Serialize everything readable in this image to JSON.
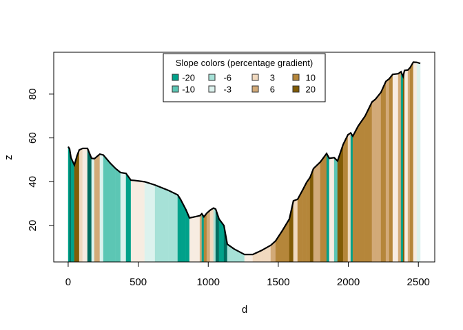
{
  "chart_data": {
    "type": "area",
    "xlabel": "d",
    "ylabel": "z",
    "xlim": [
      -103,
      2617
    ],
    "ylim": [
      3.4,
      99.1
    ],
    "x_ticks": [
      0,
      500,
      1000,
      1500,
      2000,
      2500
    ],
    "y_ticks": [
      20,
      40,
      60,
      80
    ],
    "grid": false,
    "legend": {
      "title": "Slope colors (percentage gradient)",
      "placement": "top",
      "entries": [
        {
          "label": "-20",
          "color": "#01a18a"
        },
        {
          "label": "-10",
          "color": "#5cc6b4"
        },
        {
          "label": "-6",
          "color": "#a6e1d7"
        },
        {
          "label": "-3",
          "color": "#dcf2ee"
        },
        {
          "label": "3",
          "color": "#f0d9bf"
        },
        {
          "label": "6",
          "color": "#d2aa78"
        },
        {
          "label": "10",
          "color": "#b5863a"
        },
        {
          "label": "20",
          "color": "#815b06"
        }
      ]
    },
    "flat_color": "#f7ece1",
    "steep_descent_color": "#016c5f",
    "profile": {
      "d": [
        0,
        10,
        20,
        44,
        64,
        79,
        103,
        138,
        167,
        187,
        226,
        251,
        300,
        339,
        374,
        413,
        448,
        472,
        546,
        620,
        718,
        782,
        802,
        841,
        866,
        890,
        940,
        954,
        969,
        989,
        1013,
        1038,
        1053,
        1077,
        1112,
        1136,
        1185,
        1259,
        1318,
        1382,
        1446,
        1481,
        1530,
        1579,
        1608,
        1638,
        1677,
        1702,
        1727,
        1751,
        1800,
        1845,
        1864,
        1899,
        1923,
        1963,
        1997,
        2017,
        2032,
        2071,
        2120,
        2169,
        2194,
        2233,
        2268,
        2292,
        2317,
        2356,
        2376,
        2391,
        2401,
        2425,
        2440,
        2464,
        2489,
        2514
      ],
      "z": [
        56,
        55,
        51,
        47.6,
        52,
        54.5,
        55.2,
        55.2,
        50.7,
        50.5,
        52.6,
        52.2,
        48.5,
        46,
        44.2,
        43.8,
        40.7,
        40.6,
        40,
        38.5,
        36,
        34,
        32,
        27.2,
        23.5,
        23.8,
        24.5,
        25.4,
        24,
        25.6,
        27,
        28,
        27.5,
        23,
        20,
        11.5,
        9.3,
        6.8,
        6.8,
        8.7,
        11,
        13,
        17.8,
        23,
        31.3,
        32,
        36.6,
        39.7,
        42,
        46,
        49,
        52.9,
        50.7,
        51,
        49.5,
        57,
        61.4,
        62.3,
        60.8,
        65.5,
        70,
        76.4,
        77.7,
        80.8,
        85.8,
        87,
        89,
        89.3,
        90.2,
        88,
        90.8,
        91,
        92,
        94.6,
        94.5,
        94
      ]
    }
  }
}
